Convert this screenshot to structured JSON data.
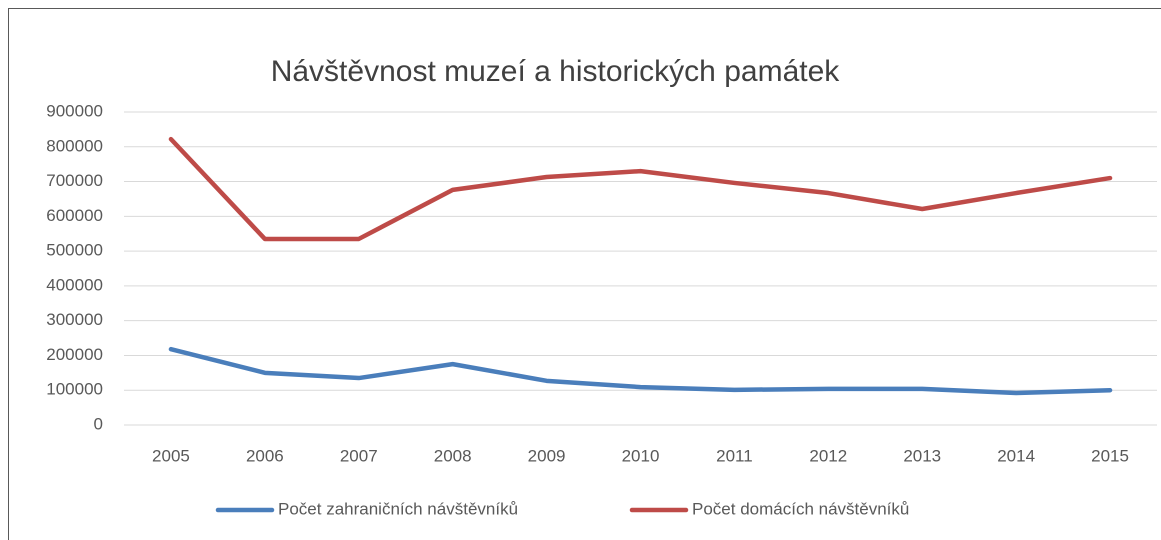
{
  "chart_data": {
    "type": "line",
    "title": "Návštěvnost muzeí a historických památek",
    "categories": [
      "2005",
      "2006",
      "2007",
      "2008",
      "2009",
      "2010",
      "2011",
      "2012",
      "2013",
      "2014",
      "2015"
    ],
    "series": [
      {
        "name": "Počet zahraničních návštěvníků",
        "color": "#4a7ebb",
        "values": [
          218000,
          150000,
          135000,
          175000,
          127000,
          109000,
          101000,
          104000,
          104000,
          92000,
          100000
        ]
      },
      {
        "name": "Počet domácích návštěvníků",
        "color": "#be4b48",
        "values": [
          822000,
          535000,
          535000,
          676000,
          713000,
          730000,
          696000,
          667000,
          621000,
          667000,
          710000
        ]
      }
    ],
    "ylim": [
      0,
      900000
    ],
    "yticks": [
      0,
      100000,
      200000,
      300000,
      400000,
      500000,
      600000,
      700000,
      800000,
      900000
    ],
    "grid": true,
    "legend": "bottom"
  }
}
